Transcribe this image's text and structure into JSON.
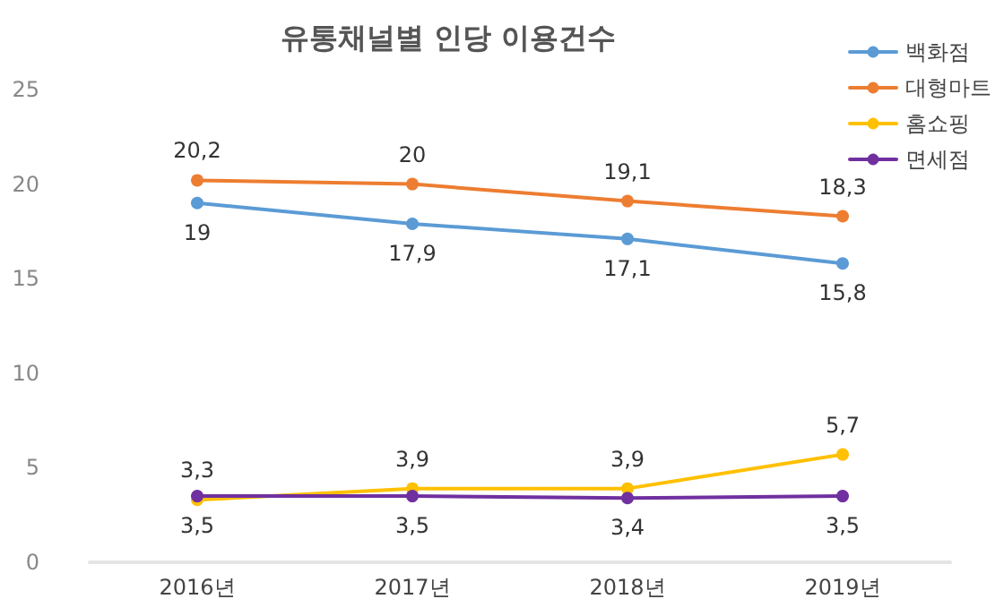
{
  "chart_data": {
    "type": "line",
    "title": "유통채널별 인당 이용건수",
    "categories": [
      "2016년",
      "2017년",
      "2018년",
      "2019년"
    ],
    "series": [
      {
        "name": "백화점",
        "color": "#5b9bd5",
        "values": [
          19,
          17.9,
          17.1,
          15.8
        ],
        "value_labels": [
          "19",
          "17,9",
          "17,1",
          "15,8"
        ]
      },
      {
        "name": "대형마트",
        "color": "#ed7d31",
        "values": [
          20.2,
          20,
          19.1,
          18.3
        ],
        "value_labels": [
          "20,2",
          "20",
          "19,1",
          "18,3"
        ]
      },
      {
        "name": "홈쇼핑",
        "color": "#ffc000",
        "values": [
          3.3,
          3.9,
          3.9,
          5.7
        ],
        "value_labels": [
          "3,3",
          "3,9",
          "3,9",
          "5,7"
        ]
      },
      {
        "name": "면세점",
        "color": "#7030a0",
        "values": [
          3.5,
          3.5,
          3.4,
          3.5
        ],
        "value_labels": [
          "3,5",
          "3,5",
          "3,4",
          "3,5"
        ]
      }
    ],
    "ylim": [
      0,
      25
    ],
    "yticks": [
      0,
      5,
      10,
      15,
      20,
      25
    ],
    "grid": false,
    "legend": "top right",
    "marker": "circle",
    "line_style": "solid"
  }
}
